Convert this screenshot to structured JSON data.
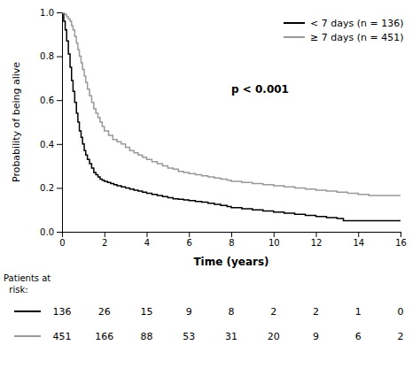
{
  "chart_data": {
    "type": "line",
    "line_style": "step",
    "xlabel": "Time (years)",
    "ylabel": "Probability of being alive",
    "xlim": [
      0,
      16
    ],
    "ylim": [
      0,
      1.0
    ],
    "xticks": [
      0,
      2,
      4,
      6,
      8,
      10,
      12,
      14,
      16
    ],
    "yticks": [
      {
        "value": 0.0,
        "label": "0.0"
      },
      0.2,
      0.4,
      0.6,
      0.8,
      {
        "value": 1.0,
        "label": "1.0"
      }
    ],
    "grid": false,
    "legend": "upper right",
    "annotations": [
      {
        "text": "p < 0.001"
      }
    ],
    "risk_table": {
      "label": [
        "Patients at",
        "  risk:"
      ],
      "times": [
        0,
        2,
        4,
        6,
        8,
        10,
        12,
        14,
        16
      ]
    },
    "series": [
      {
        "name": "< 7 days (n = 136)",
        "color": "#000000",
        "x": [
          0,
          0.08,
          0.15,
          0.22,
          0.3,
          0.38,
          0.45,
          0.52,
          0.6,
          0.68,
          0.75,
          0.82,
          0.9,
          0.97,
          1.05,
          1.12,
          1.2,
          1.3,
          1.4,
          1.5,
          1.6,
          1.7,
          1.8,
          1.9,
          2.0,
          2.15,
          2.3,
          2.45,
          2.6,
          2.8,
          3.0,
          3.2,
          3.4,
          3.6,
          3.8,
          4.0,
          4.25,
          4.5,
          4.75,
          5.0,
          5.25,
          5.5,
          5.75,
          6.0,
          6.3,
          6.6,
          6.9,
          7.2,
          7.5,
          7.8,
          8.0,
          8.5,
          9.0,
          9.5,
          10.0,
          10.5,
          11.0,
          11.5,
          12.0,
          12.5,
          13.0,
          13.3,
          13.6,
          14.0,
          14.5,
          16.0
        ],
        "values": [
          1.0,
          0.96,
          0.92,
          0.87,
          0.81,
          0.75,
          0.69,
          0.64,
          0.59,
          0.54,
          0.5,
          0.46,
          0.43,
          0.4,
          0.37,
          0.35,
          0.33,
          0.31,
          0.29,
          0.27,
          0.26,
          0.25,
          0.24,
          0.235,
          0.23,
          0.225,
          0.22,
          0.215,
          0.21,
          0.205,
          0.2,
          0.195,
          0.19,
          0.185,
          0.18,
          0.175,
          0.17,
          0.165,
          0.16,
          0.155,
          0.15,
          0.148,
          0.145,
          0.142,
          0.138,
          0.135,
          0.13,
          0.125,
          0.12,
          0.115,
          0.11,
          0.105,
          0.1,
          0.095,
          0.09,
          0.085,
          0.08,
          0.075,
          0.07,
          0.065,
          0.06,
          0.05,
          0.05,
          0.05,
          0.05,
          0.05
        ],
        "at_risk": [
          136,
          26,
          15,
          9,
          8,
          2,
          2,
          1,
          0
        ]
      },
      {
        "name": "≥ 7 days (n = 451)",
        "color": "#999999",
        "x": [
          0,
          0.08,
          0.15,
          0.22,
          0.3,
          0.38,
          0.45,
          0.52,
          0.6,
          0.68,
          0.75,
          0.82,
          0.9,
          0.97,
          1.05,
          1.12,
          1.2,
          1.3,
          1.4,
          1.5,
          1.6,
          1.7,
          1.8,
          1.9,
          2.0,
          2.2,
          2.4,
          2.6,
          2.8,
          3.0,
          3.2,
          3.4,
          3.6,
          3.8,
          4.0,
          4.25,
          4.5,
          4.75,
          5.0,
          5.25,
          5.5,
          5.75,
          6.0,
          6.3,
          6.6,
          6.9,
          7.2,
          7.5,
          7.8,
          8.0,
          8.5,
          9.0,
          9.5,
          10.0,
          10.5,
          11.0,
          11.5,
          12.0,
          12.5,
          13.0,
          13.5,
          14.0,
          14.5,
          15.0,
          16.0
        ],
        "values": [
          1.0,
          0.995,
          0.99,
          0.98,
          0.97,
          0.96,
          0.94,
          0.92,
          0.89,
          0.86,
          0.83,
          0.8,
          0.77,
          0.74,
          0.71,
          0.68,
          0.65,
          0.62,
          0.59,
          0.56,
          0.54,
          0.52,
          0.5,
          0.48,
          0.46,
          0.44,
          0.42,
          0.41,
          0.4,
          0.385,
          0.37,
          0.36,
          0.35,
          0.34,
          0.33,
          0.32,
          0.31,
          0.3,
          0.29,
          0.285,
          0.275,
          0.27,
          0.265,
          0.26,
          0.255,
          0.25,
          0.245,
          0.24,
          0.235,
          0.23,
          0.225,
          0.22,
          0.215,
          0.21,
          0.205,
          0.2,
          0.195,
          0.19,
          0.185,
          0.18,
          0.175,
          0.17,
          0.165,
          0.165,
          0.165
        ],
        "at_risk": [
          451,
          166,
          88,
          53,
          31,
          20,
          9,
          6,
          2
        ]
      }
    ]
  }
}
